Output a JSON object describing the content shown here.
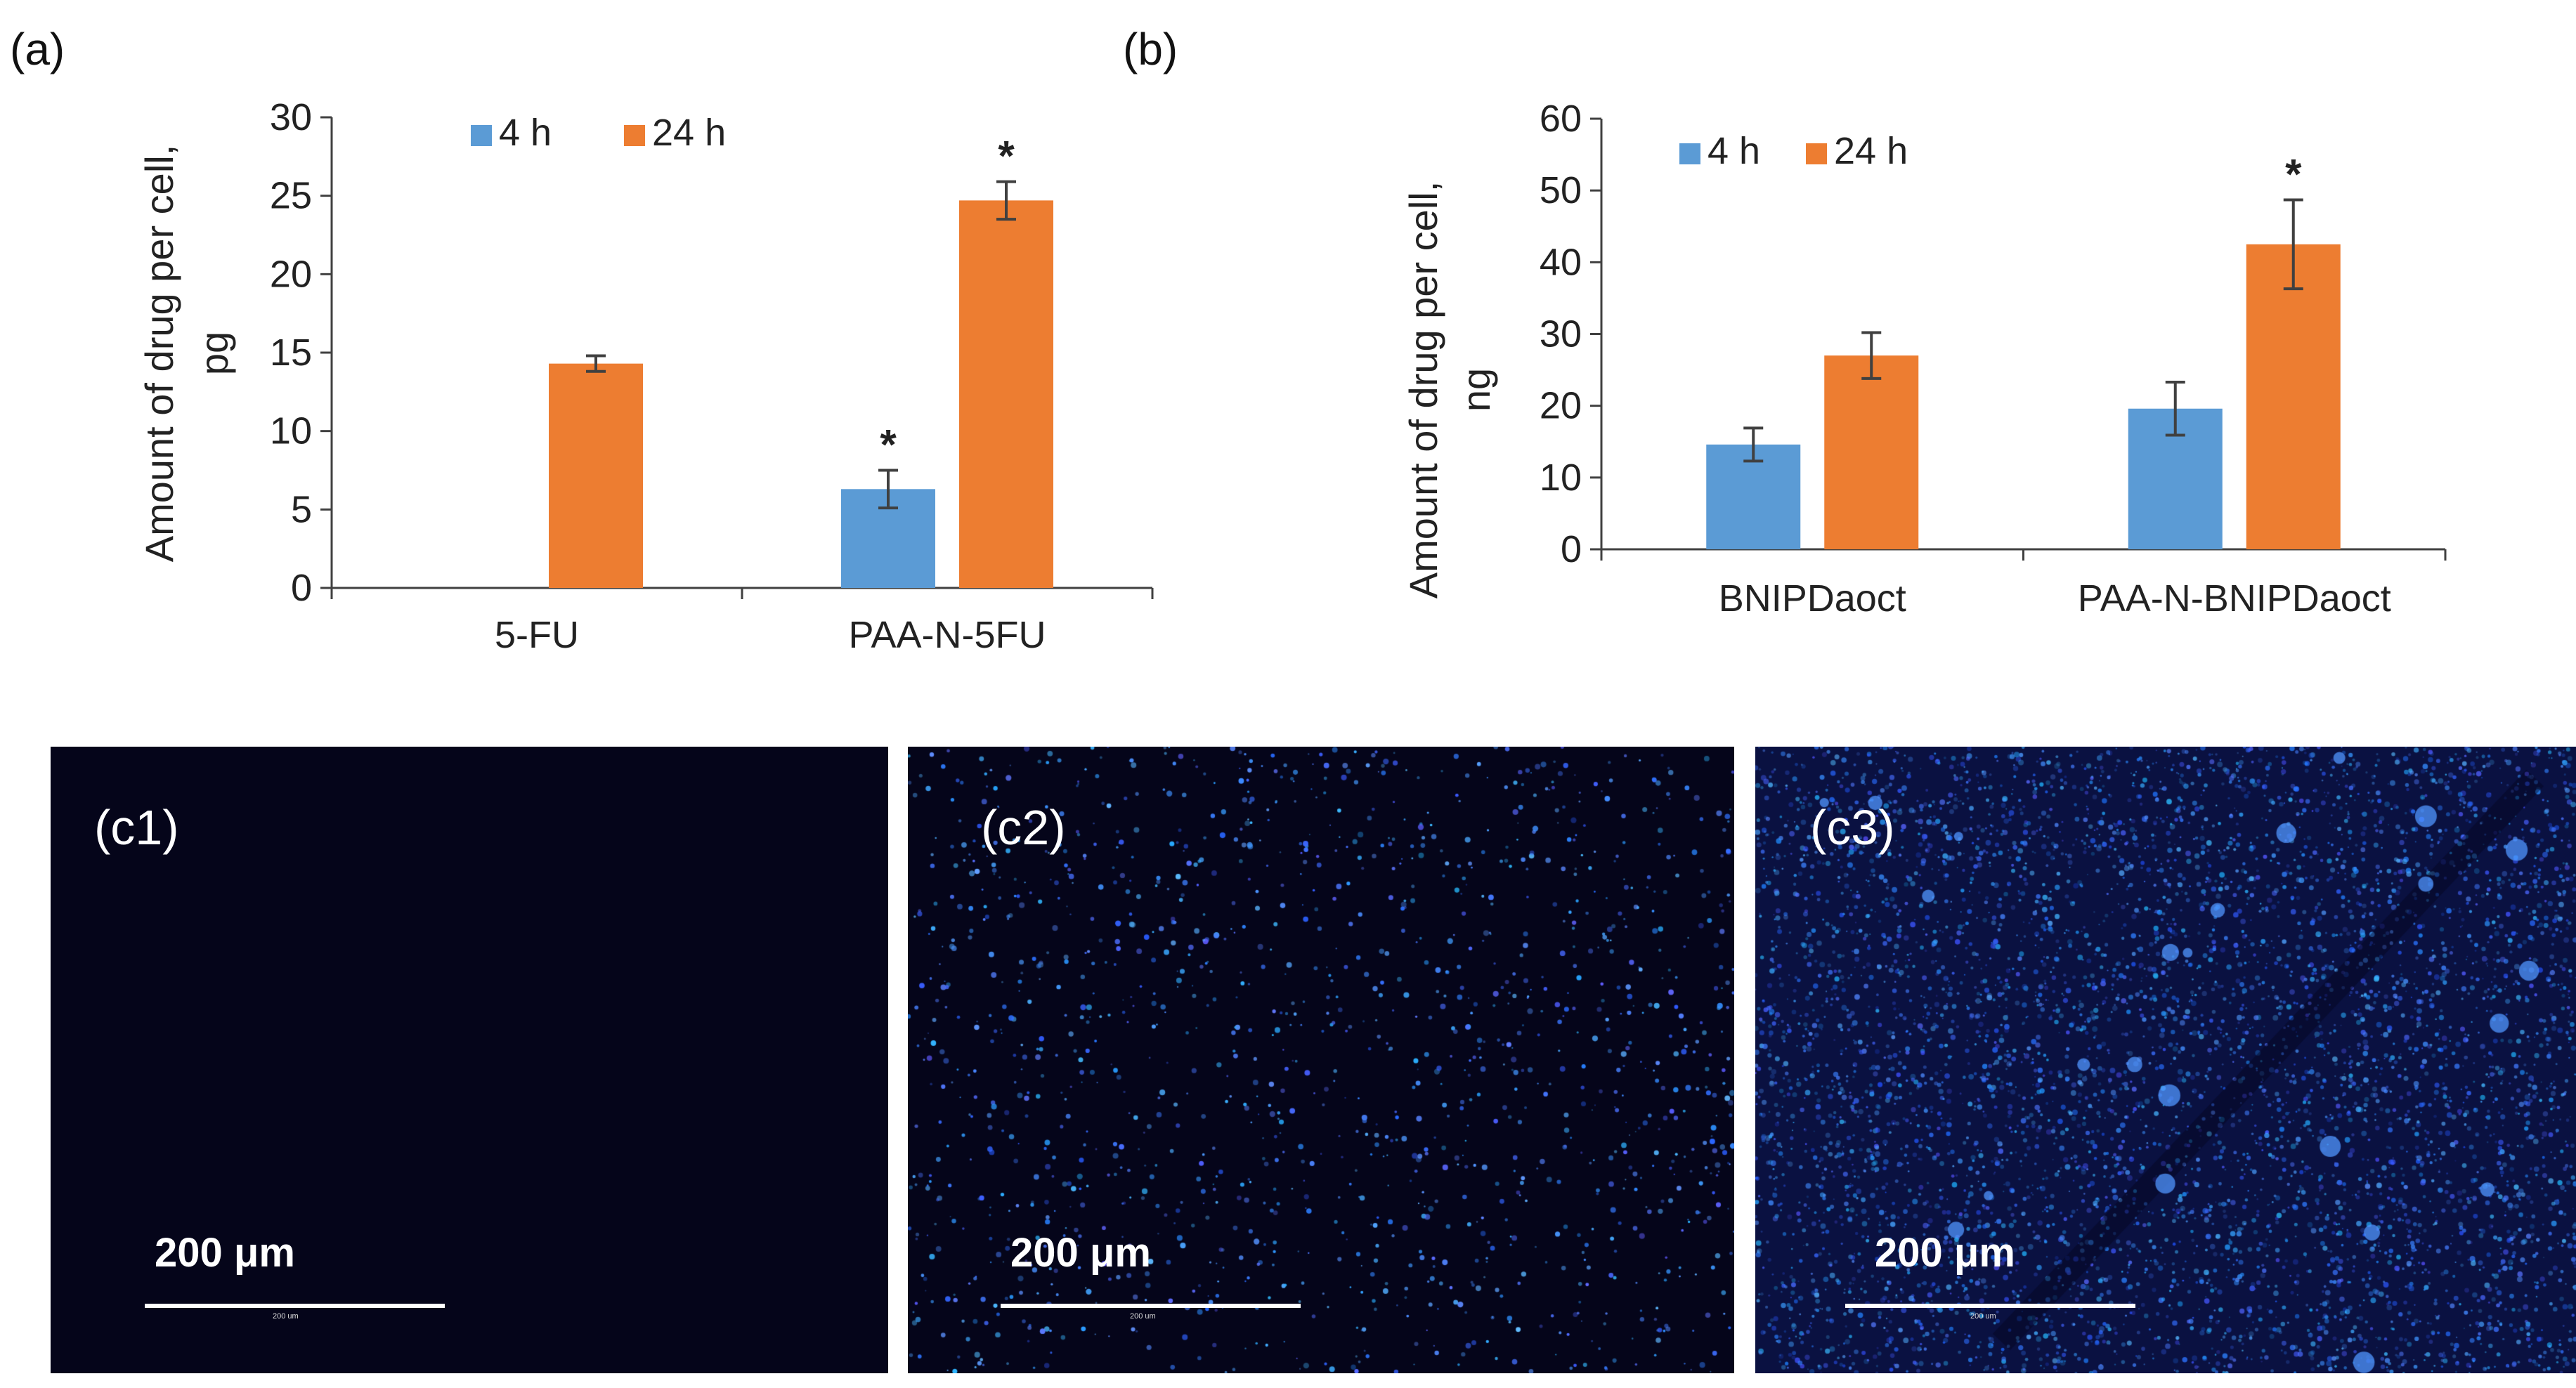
{
  "panels": {
    "a_label": "(a)",
    "b_label": "(b)"
  },
  "chart_data": [
    {
      "id": "a",
      "type": "bar",
      "title": "",
      "xlabel": "",
      "ylabel_line1": "Amount of drug per cell,",
      "ylabel_line2": "pg",
      "categories": [
        "5-FU",
        "PAA-N-5FU"
      ],
      "series": [
        {
          "name": "4 h",
          "color": "#5B9BD5",
          "values": [
            null,
            6.3
          ],
          "errors": [
            null,
            1.2
          ],
          "significant": [
            false,
            true
          ]
        },
        {
          "name": "24 h",
          "color": "#ED7D31",
          "values": [
            14.3,
            24.7
          ],
          "errors": [
            0.5,
            1.2
          ],
          "significant": [
            false,
            true
          ]
        }
      ],
      "ylim": [
        0,
        30
      ],
      "yticks": [
        0,
        5,
        10,
        15,
        20,
        25,
        30
      ],
      "ytick_labels": [
        "0",
        "5",
        "10",
        "15",
        "20",
        "25",
        "30"
      ],
      "significance_marker": "*",
      "legend": "top"
    },
    {
      "id": "b",
      "type": "bar",
      "title": "",
      "xlabel": "",
      "ylabel_line1": "Amount of drug per cell,",
      "ylabel_line2": "ng",
      "categories": [
        "BNIPDaoct",
        "PAA-N-BNIPDaoct"
      ],
      "series": [
        {
          "name": "4 h",
          "color": "#5B9BD5",
          "values": [
            14.6,
            19.6
          ],
          "errors": [
            2.3,
            3.7
          ],
          "significant": [
            false,
            false
          ]
        },
        {
          "name": "24 h",
          "color": "#ED7D31",
          "values": [
            27.0,
            42.5
          ],
          "errors": [
            3.2,
            6.2
          ],
          "significant": [
            false,
            true
          ]
        }
      ],
      "ylim": [
        0,
        60
      ],
      "yticks": [
        0,
        10,
        20,
        30,
        40,
        50,
        60
      ],
      "ytick_labels": [
        "0",
        "10",
        "20",
        "30",
        "40",
        "50",
        "60"
      ],
      "significance_marker": "*",
      "legend": "top"
    }
  ],
  "micrographs": [
    {
      "label": "(c1)",
      "scale_text": "200 μm",
      "scale_tiny": "200 um",
      "density": 0
    },
    {
      "label": "(c2)",
      "scale_text": "200 μm",
      "scale_tiny": "200 um",
      "density": 1
    },
    {
      "label": "(c3)",
      "scale_text": "200 μm",
      "scale_tiny": "200 um",
      "density": 2
    }
  ]
}
